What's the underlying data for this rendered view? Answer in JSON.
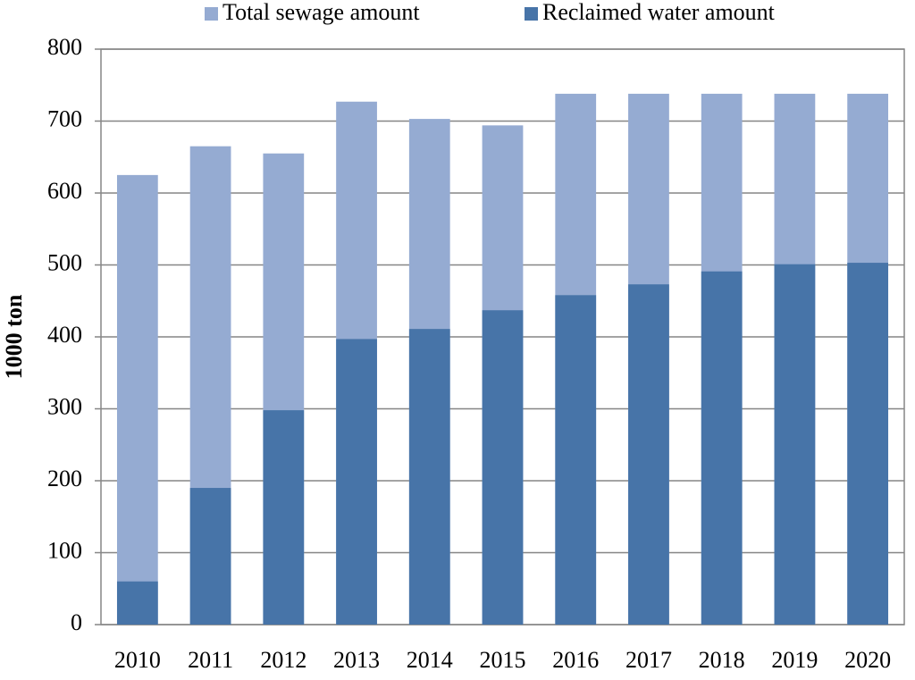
{
  "chart_data": {
    "type": "bar",
    "y_label": "1000 ton",
    "categories": [
      "2010",
      "2011",
      "2012",
      "2013",
      "2014",
      "2015",
      "2016",
      "2017",
      "2018",
      "2019",
      "2020"
    ],
    "series": [
      {
        "name": "Total sewage amount",
        "color": "#95abd2",
        "values": [
          625,
          665,
          655,
          727,
          703,
          694,
          738,
          738,
          738,
          738,
          738
        ]
      },
      {
        "name": "Reclaimed water amount",
        "color": "#4774a8",
        "values": [
          60,
          190,
          298,
          397,
          411,
          437,
          458,
          473,
          491,
          501,
          503
        ]
      }
    ],
    "ylim": [
      0,
      800
    ],
    "yticks": [
      0,
      100,
      200,
      300,
      400,
      500,
      600,
      700,
      800
    ],
    "grid": true
  }
}
